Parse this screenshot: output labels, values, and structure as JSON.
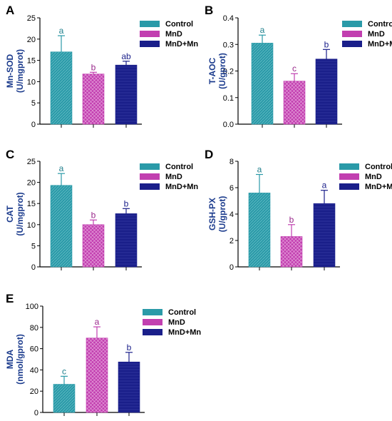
{
  "colors": {
    "control": "#2a9aa8",
    "mnd": "#c23fb0",
    "mndmn": "#1a1f8a",
    "label_text": "#1a3a8c",
    "control_sig": "#1f7f8c",
    "mnd_sig": "#9a2a8c",
    "mndmn_sig": "#1a1f8a",
    "axis": "#000000"
  },
  "chart_data": [
    {
      "panel": "A",
      "type": "bar",
      "categories": [
        "Control",
        "MnD",
        "MnD+Mn"
      ],
      "values": [
        17.0,
        11.8,
        13.9
      ],
      "errors": [
        3.8,
        0.4,
        0.9
      ],
      "significance": [
        "a",
        "b",
        "ab"
      ],
      "ylabel_lines": [
        "Mn-SOD",
        "(U/mgprot)"
      ],
      "ylim": [
        0,
        25
      ],
      "yticks": [
        0,
        5,
        10,
        15,
        20,
        25
      ],
      "legend": [
        "Control",
        "MnD",
        "MnD+Mn"
      ],
      "legend_position": "top-right",
      "grid": false
    },
    {
      "panel": "B",
      "type": "bar",
      "categories": [
        "Control",
        "MnD",
        "MnD+Mn"
      ],
      "values": [
        0.305,
        0.162,
        0.245
      ],
      "errors": [
        0.03,
        0.028,
        0.036
      ],
      "significance": [
        "a",
        "c",
        "b"
      ],
      "ylabel_lines": [
        "T-AOC",
        "(U/gprot)"
      ],
      "ylim": [
        0,
        0.4
      ],
      "yticks": [
        0.0,
        0.1,
        0.2,
        0.3,
        0.4
      ],
      "legend": [
        "Control",
        "MnD",
        "MnD+Mn"
      ],
      "legend_position": "top-right",
      "grid": false
    },
    {
      "panel": "C",
      "type": "bar",
      "categories": [
        "Control",
        "MnD",
        "MnD+Mn"
      ],
      "values": [
        19.3,
        10.0,
        12.6
      ],
      "errors": [
        2.8,
        1.1,
        1.2
      ],
      "significance": [
        "a",
        "b",
        "b"
      ],
      "ylabel_lines": [
        "CAT",
        "(U/mgprot)"
      ],
      "ylim": [
        0,
        25
      ],
      "yticks": [
        0,
        5,
        10,
        15,
        20,
        25
      ],
      "legend": [
        "Control",
        "MnD",
        "MnD+Mn"
      ],
      "legend_position": "top-right",
      "grid": false
    },
    {
      "panel": "D",
      "type": "bar",
      "categories": [
        "Control",
        "MnD",
        "MnD+Mn"
      ],
      "values": [
        5.6,
        2.3,
        4.8
      ],
      "errors": [
        1.4,
        0.9,
        1.0
      ],
      "significance": [
        "a",
        "b",
        "a"
      ],
      "ylabel_lines": [
        "GSH-PX",
        "(U/gprot)"
      ],
      "ylim": [
        0,
        8
      ],
      "yticks": [
        0,
        2,
        4,
        6,
        8
      ],
      "legend": [
        "Control",
        "MnD",
        "MnD+Mn"
      ],
      "legend_position": "top-right",
      "grid": false
    },
    {
      "panel": "E",
      "type": "bar",
      "categories": [
        "Control",
        "MnD",
        "MnD+Mn"
      ],
      "values": [
        26.5,
        70.0,
        47.5
      ],
      "errors": [
        7.5,
        10.5,
        9.0
      ],
      "significance": [
        "c",
        "a",
        "b"
      ],
      "ylabel_lines": [
        "MDA",
        "(nmol/gprot)"
      ],
      "ylim": [
        0,
        100
      ],
      "yticks": [
        0,
        20,
        40,
        60,
        80,
        100
      ],
      "legend": [
        "Control",
        "MnD",
        "MnD+Mn"
      ],
      "legend_position": "top-right",
      "grid": false
    }
  ]
}
